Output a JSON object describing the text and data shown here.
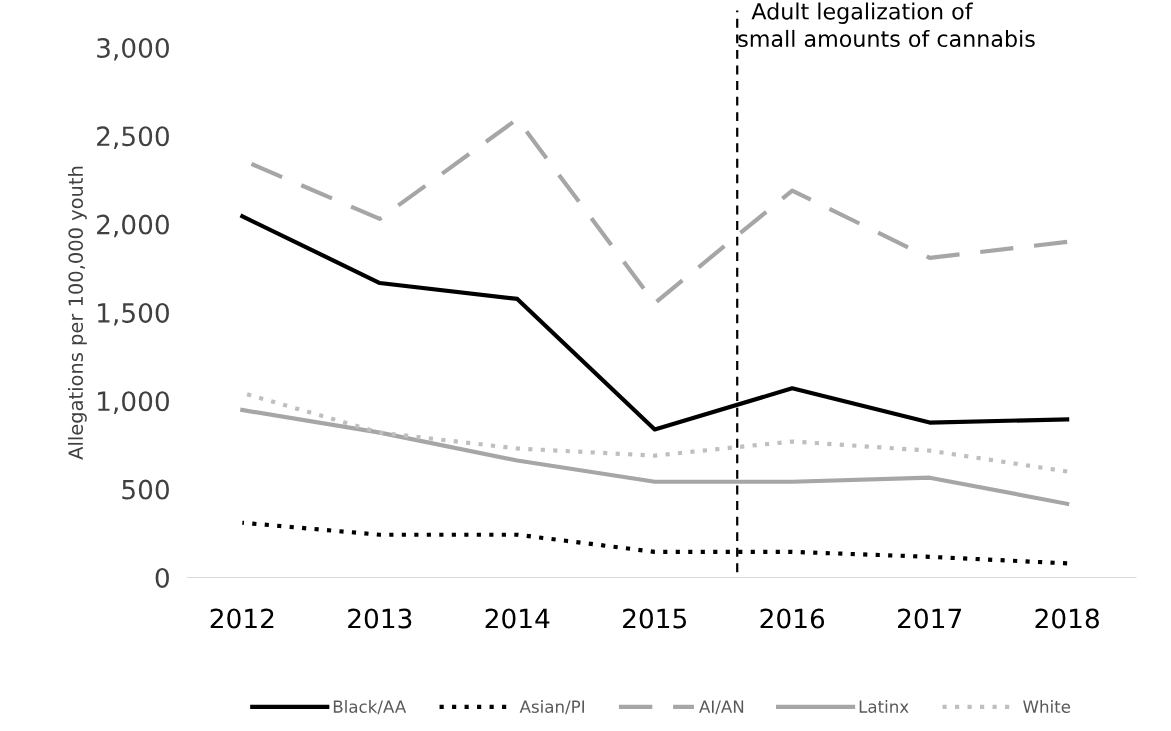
{
  "chart_data": {
    "type": "line",
    "ylabel": "Allegations per 100,000 youth",
    "x": [
      2012,
      2013,
      2014,
      2015,
      2016,
      2017,
      2018
    ],
    "xlim": [
      2011.6,
      2018.5
    ],
    "xticks": [
      2012,
      2013,
      2014,
      2015,
      2016,
      2017,
      2018
    ],
    "ylim": [
      0,
      3000
    ],
    "yticks": [
      {
        "value": 0,
        "label": "0"
      },
      {
        "value": 500,
        "label": "500"
      },
      {
        "value": 1000,
        "label": "1,000"
      },
      {
        "value": 1500,
        "label": "1,500"
      },
      {
        "value": 2000,
        "label": "2,000"
      },
      {
        "value": 2500,
        "label": "2,500"
      },
      {
        "value": 3000,
        "label": "3,000"
      }
    ],
    "series": [
      {
        "name": "Black/AA",
        "color": "#000000",
        "line_style": "solid",
        "values": [
          2044,
          1667,
          1577,
          838,
          1071,
          877,
          895
        ]
      },
      {
        "name": "Asian/PI",
        "color": "#000000",
        "line_style": "dotted",
        "values": [
          310,
          242,
          242,
          145,
          145,
          117,
          80
        ]
      },
      {
        "name": "AI/AN",
        "color": "#a6a6a6",
        "line_style": "dashed",
        "values": [
          2363,
          2030,
          2595,
          1553,
          2190,
          1809,
          1900
        ]
      },
      {
        "name": "Latinx",
        "color": "#a6a6a6",
        "line_style": "solid",
        "values": [
          948,
          820,
          662,
          542,
          542,
          565,
          417
        ]
      },
      {
        "name": "White",
        "color": "#bfbfbf",
        "line_style": "dotted",
        "values": [
          1045,
          820,
          730,
          690,
          770,
          718,
          600
        ]
      }
    ],
    "ref_lines": [
      {
        "axis": "x",
        "value": 2015.6,
        "label": "Adult legalization of\nsmall amounts of cannabis",
        "color": "#000000",
        "line_style": "dashed"
      }
    ],
    "grid": false,
    "legend": "bottom",
    "marker": "none"
  }
}
